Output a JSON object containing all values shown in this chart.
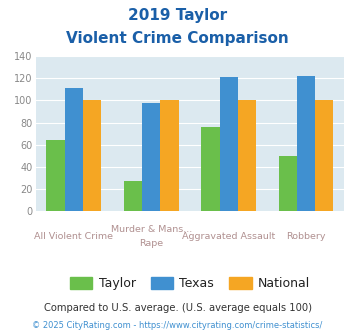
{
  "title_line1": "2019 Taylor",
  "title_line2": "Violent Crime Comparison",
  "top_labels": [
    "",
    "Murder & Mans...",
    "Aggravated Assault",
    ""
  ],
  "bottom_labels": [
    "All Violent Crime",
    "Rape",
    "",
    "Robbery"
  ],
  "taylor": [
    64,
    27,
    76,
    50
  ],
  "texas": [
    111,
    98,
    121,
    122
  ],
  "national": [
    100,
    100,
    100,
    100
  ],
  "taylor_color": "#6abf4b",
  "texas_color": "#4090d0",
  "national_color": "#f5a623",
  "ylim": [
    0,
    140
  ],
  "yticks": [
    0,
    20,
    40,
    60,
    80,
    100,
    120,
    140
  ],
  "bg_color": "#dce9f0",
  "title_color": "#1a5fa8",
  "legend_labels": [
    "Taylor",
    "Texas",
    "National"
  ],
  "label_color": "#b09090",
  "footnote1": "Compared to U.S. average. (U.S. average equals 100)",
  "footnote2": "© 2025 CityRating.com - https://www.cityrating.com/crime-statistics/",
  "footnote1_color": "#333333",
  "footnote2_color": "#4090d0",
  "ytick_color": "#888888"
}
